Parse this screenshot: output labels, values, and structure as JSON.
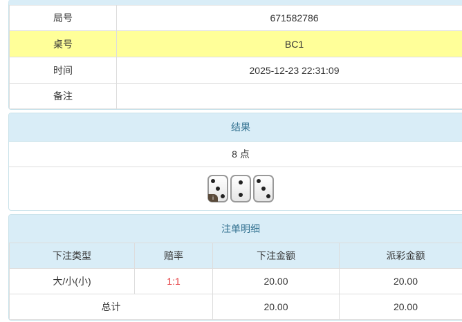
{
  "info": {
    "rows": [
      {
        "label": "局号",
        "value": "671582786"
      },
      {
        "label": "桌号",
        "value": "BC1",
        "highlight": true
      },
      {
        "label": "时间",
        "value": "2025-12-23 22:31:09"
      },
      {
        "label": "备注",
        "value": ""
      }
    ]
  },
  "result": {
    "title": "结果",
    "points": "8 点",
    "dice": [
      3,
      2,
      3
    ],
    "info_icon": "i"
  },
  "bets": {
    "title": "注单明细",
    "columns": [
      "下注类型",
      "赔率",
      "下注金额",
      "派彩金额"
    ],
    "rows": [
      {
        "type": "大/小(小)",
        "odds": "1:1",
        "amount": "20.00",
        "payout": "20.00"
      }
    ],
    "total": {
      "label": "总计",
      "amount": "20.00",
      "payout": "20.00"
    }
  },
  "colors": {
    "header_bg": "#d9edf7",
    "highlight_bg": "#ffff99",
    "odds": "#e4393c"
  }
}
